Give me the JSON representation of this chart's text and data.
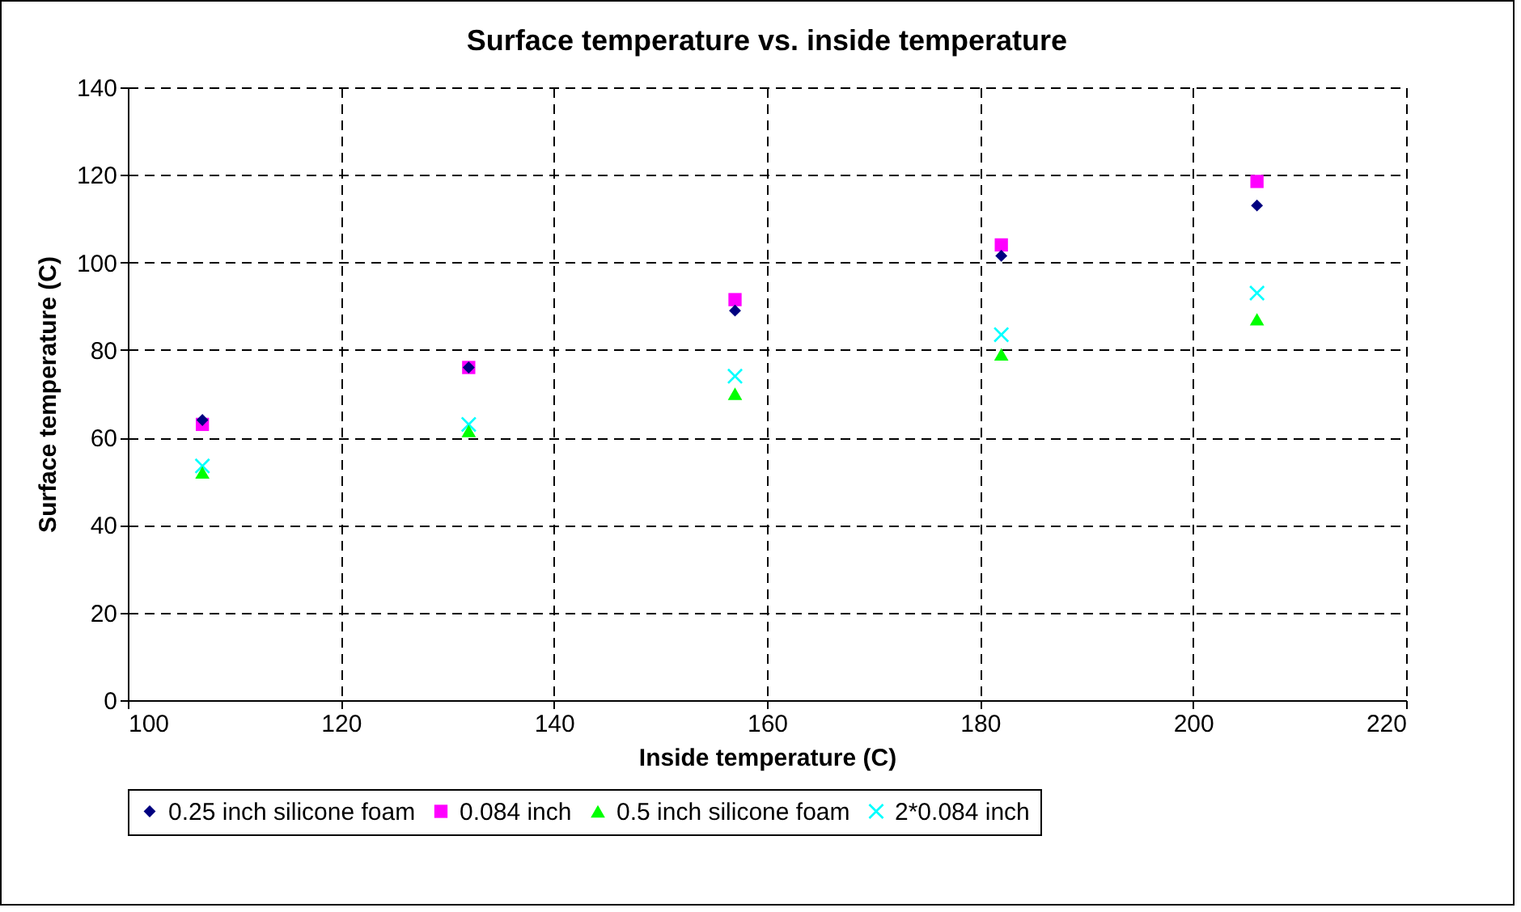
{
  "chart_data": {
    "type": "scatter",
    "title": "Surface temperature vs. inside temperature",
    "xlabel": "Inside temperature (C)",
    "ylabel": "Surface temperature (C)",
    "x": [
      107,
      132,
      157,
      182,
      206
    ],
    "series": [
      {
        "name": "0.25 inch silicone foam",
        "color": "#000080",
        "marker": "diamond",
        "values": [
          64,
          76,
          89,
          101.5,
          113
        ]
      },
      {
        "name": "0.084 inch",
        "color": "#ff00ff",
        "marker": "square",
        "values": [
          63,
          76,
          91.5,
          104,
          118.5
        ]
      },
      {
        "name": "0.5 inch silicone foam",
        "color": "#00ff00",
        "marker": "triangle",
        "values": [
          52,
          61.5,
          70,
          79,
          87
        ]
      },
      {
        "name": "2*0.084 inch",
        "color": "#00ffff",
        "marker": "cross",
        "values": [
          53.5,
          63,
          74,
          83.5,
          93
        ]
      }
    ],
    "xlim": [
      100,
      220
    ],
    "xticks": [
      100,
      120,
      140,
      160,
      180,
      200,
      220
    ],
    "ylim": [
      0,
      140
    ],
    "yticks": [
      0,
      20,
      40,
      60,
      80,
      100,
      120,
      140
    ],
    "grid": true,
    "legend": "bottom"
  }
}
